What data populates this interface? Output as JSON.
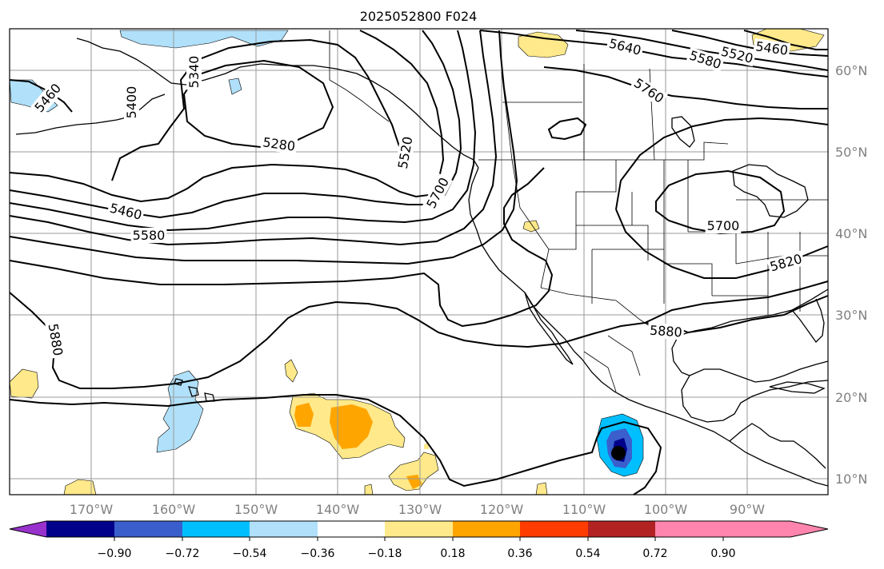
{
  "title": "2025052800 F024",
  "lon_labels": [
    "170°W",
    "160°W",
    "150°W",
    "140°W",
    "130°W",
    "120°W",
    "110°W",
    "100°W",
    "90°W"
  ],
  "lat_labels": [
    "60°N",
    "50°N",
    "40°N",
    "30°N",
    "20°N",
    "10°N"
  ],
  "colorbar": {
    "ticks": [
      "−0.90",
      "−0.72",
      "−0.54",
      "−0.36",
      "−0.18",
      "0.18",
      "0.36",
      "0.54",
      "0.72",
      "0.90"
    ],
    "colors": [
      "#9932cc",
      "#00008b",
      "#3a5fcd",
      "#00bfff",
      "#b0e0fa",
      "#ffffff",
      "#ffe98a",
      "#ffa500",
      "#ff3c00",
      "#b22222",
      "#ff85ae"
    ]
  },
  "contour_labels": [
    "5460",
    "5400",
    "5340",
    "5280",
    "5520",
    "5460",
    "5580",
    "5700",
    "5880",
    "5640",
    "5580",
    "5520",
    "5460",
    "5760",
    "5700",
    "5820",
    "5880"
  ],
  "fill_colors": {
    "light_blue": "#b0e0fa",
    "blue": "#00bfff",
    "dark_blue": "#3a5fcd",
    "navy": "#00008b",
    "light_yellow": "#ffe98a",
    "orange": "#ffa500",
    "black_core": "#000000"
  }
}
